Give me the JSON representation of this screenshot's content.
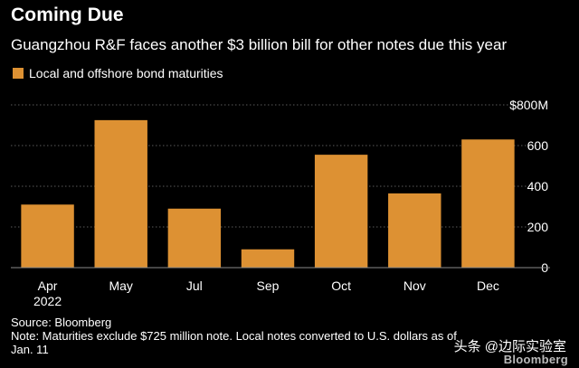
{
  "title": "Coming Due",
  "subtitle": "Guangzhou R&F faces another $3 billion bill for other notes due this year",
  "legend": {
    "label": "Local and offshore bond maturities"
  },
  "chart_data": {
    "type": "bar",
    "categories": [
      "Apr",
      "May",
      "Jul",
      "Sep",
      "Oct",
      "Nov",
      "Dec"
    ],
    "category_sublabels": [
      "2022",
      "",
      "",
      "",
      "",
      "",
      ""
    ],
    "series": [
      {
        "name": "Local and offshore bond maturities",
        "values": [
          310,
          725,
          290,
          90,
          555,
          365,
          630
        ]
      }
    ],
    "ylim": [
      0,
      800
    ],
    "yticks": [
      0,
      200,
      400,
      600,
      800
    ],
    "ytick_labels": [
      "0",
      "200",
      "400",
      "600",
      "$800M"
    ],
    "y_axis_position": "right",
    "grid": true,
    "color": "#dd9133"
  },
  "footer": {
    "source": "Source: Bloomberg",
    "note": "Note: Maturities exclude $725 million note. Local notes converted to U.S. dollars as of Jan. 11"
  },
  "watermark": {
    "text": "头条 @边际实验室",
    "logo": "Bloomberg"
  }
}
